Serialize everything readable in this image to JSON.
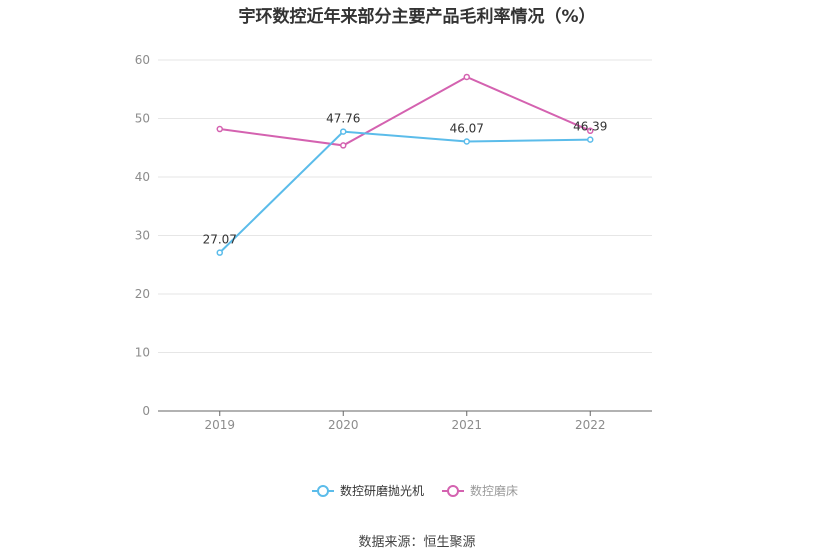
{
  "chart_data": {
    "type": "line",
    "title": "宇环数控近年来部分主要产品毛利率情况（%）",
    "categories": [
      "2019",
      "2020",
      "2021",
      "2022"
    ],
    "ylim": [
      0,
      60
    ],
    "yticks": [
      0,
      10,
      20,
      30,
      40,
      50,
      60
    ],
    "grid": true,
    "legend_position": "bottom",
    "series": [
      {
        "name": "数控研磨抛光机",
        "values": [
          27.07,
          47.76,
          46.07,
          46.39
        ],
        "color": "#5bbcea",
        "labeled": true
      },
      {
        "name": "数控磨床",
        "values": [
          48.2,
          45.4,
          57.1,
          47.9
        ],
        "color": "#d462b0",
        "labeled": false
      }
    ],
    "source": "数据来源：恒生聚源"
  }
}
